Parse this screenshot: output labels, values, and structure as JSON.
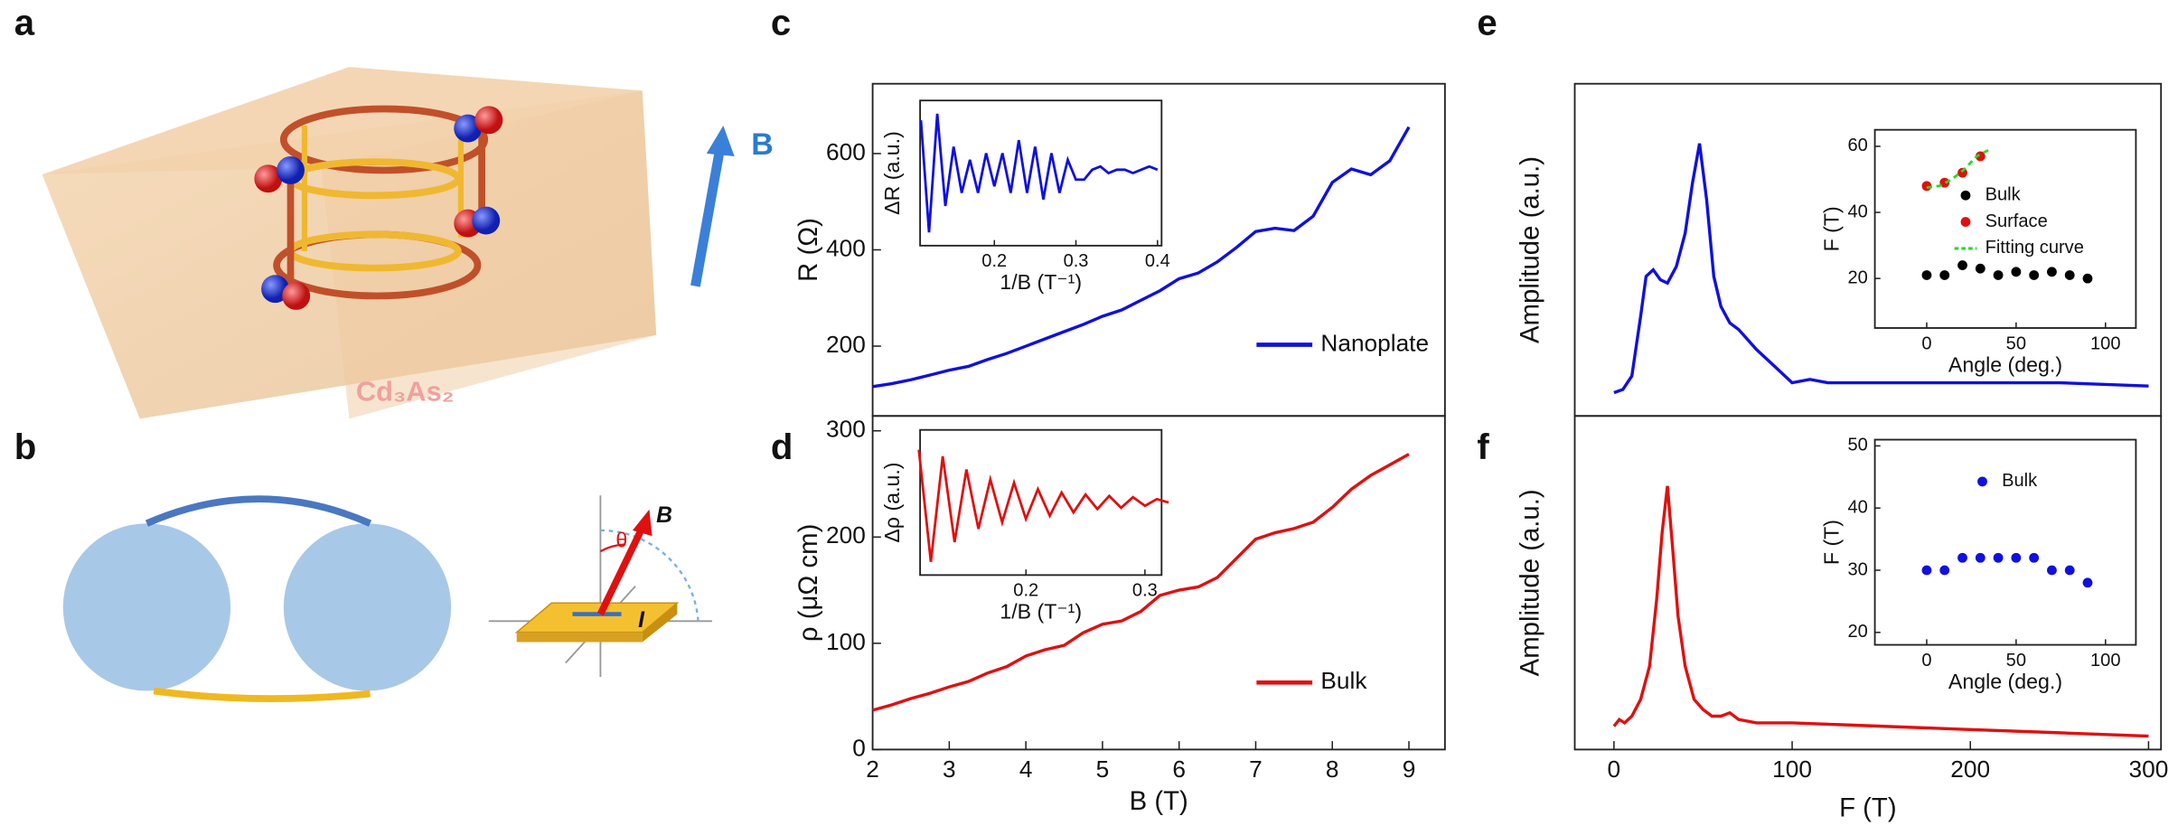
{
  "panel_labels": [
    "a",
    "b",
    "c",
    "d",
    "e",
    "f"
  ],
  "diagram_a": {
    "field": "B",
    "material": "Cd₃As₂"
  },
  "diagram_b": {
    "field": "B",
    "angle": "θ",
    "current": "I"
  },
  "chart_data": [
    {
      "type": "line",
      "ylabel": "R (Ω)",
      "xlim": [
        2,
        9.47
      ],
      "ylim": [
        55,
        745
      ],
      "yticks": [
        200,
        400,
        600
      ],
      "series": [
        {
          "name": "Nanoplate",
          "color": "#1010e0",
          "x": [
            2,
            2.25,
            2.5,
            2.75,
            3,
            3.25,
            3.5,
            3.75,
            4,
            4.25,
            4.5,
            4.75,
            5,
            5.25,
            5.5,
            5.75,
            6,
            6.25,
            6.5,
            6.75,
            7,
            7.25,
            7.5,
            7.75,
            8,
            8.25,
            8.5,
            8.75,
            9
          ],
          "values": [
            116,
            122,
            130,
            140,
            150,
            158,
            172,
            185,
            200,
            215,
            230,
            245,
            262,
            275,
            295,
            315,
            340,
            352,
            375,
            405,
            438,
            445,
            440,
            470,
            540,
            568,
            556,
            585,
            655
          ]
        }
      ]
    },
    {
      "type": "line",
      "xlabel": "1/B (T⁻¹)",
      "ylabel": "ΔR (a.u.)",
      "xlim": [
        0.109,
        0.405
      ],
      "ylim": [
        -1.1,
        1.1
      ],
      "xticks": [
        0.2,
        0.3,
        0.4
      ],
      "series": [
        {
          "color": "#1010e0",
          "x": [
            0.11,
            0.12,
            0.13,
            0.14,
            0.15,
            0.16,
            0.17,
            0.18,
            0.19,
            0.2,
            0.21,
            0.22,
            0.23,
            0.24,
            0.25,
            0.26,
            0.27,
            0.28,
            0.29,
            0.3,
            0.31,
            0.32,
            0.33,
            0.34,
            0.35,
            0.36,
            0.37,
            0.38,
            0.39,
            0.4
          ],
          "values": [
            0.8,
            -0.9,
            0.9,
            -0.5,
            0.4,
            -0.3,
            0.2,
            -0.3,
            0.3,
            -0.2,
            0.3,
            -0.3,
            0.5,
            -0.3,
            0.4,
            -0.4,
            0.3,
            -0.3,
            0.2,
            -0.1,
            -0.1,
            0.05,
            0.1,
            0,
            0.05,
            0.05,
            0,
            0.05,
            0.1,
            0.05
          ]
        }
      ]
    },
    {
      "type": "line",
      "xlabel": "B (T)",
      "ylabel": "ρ (μΩ cm)",
      "xlim": [
        2,
        9.47
      ],
      "ylim": [
        0,
        314
      ],
      "xticks": [
        2,
        3,
        4,
        5,
        6,
        7,
        8,
        9
      ],
      "yticks": [
        0,
        100,
        200,
        300
      ],
      "series": [
        {
          "name": "Bulk",
          "color": "#e01010",
          "x": [
            2,
            2.25,
            2.5,
            2.75,
            3,
            3.25,
            3.5,
            3.75,
            4,
            4.25,
            4.5,
            4.75,
            5,
            5.25,
            5.5,
            5.75,
            6,
            6.25,
            6.5,
            6.75,
            7,
            7.25,
            7.5,
            7.75,
            8,
            8.25,
            8.5,
            8.75,
            9
          ],
          "values": [
            37,
            42,
            48,
            53,
            59,
            64,
            72,
            78,
            88,
            94,
            98,
            110,
            118,
            121,
            130,
            145,
            150,
            153,
            162,
            180,
            198,
            204,
            208,
            214,
            228,
            245,
            258,
            268,
            278
          ]
        }
      ]
    },
    {
      "type": "line",
      "xlabel": "1/B (T⁻¹)",
      "ylabel": "Δρ (a.u.)",
      "xlim": [
        0.111,
        0.314
      ],
      "ylim": [
        -1.1,
        1.1
      ],
      "xticks": [
        0.2,
        0.3
      ],
      "series": [
        {
          "color": "#e01010",
          "x": [
            0.11,
            0.12,
            0.13,
            0.14,
            0.15,
            0.16,
            0.17,
            0.18,
            0.19,
            0.2,
            0.21,
            0.22,
            0.23,
            0.24,
            0.25,
            0.26,
            0.27,
            0.28,
            0.29,
            0.3,
            0.31,
            0.32
          ],
          "values": [
            0.8,
            -0.9,
            0.7,
            -0.6,
            0.5,
            -0.4,
            0.35,
            -0.3,
            0.3,
            -0.25,
            0.2,
            -0.2,
            0.15,
            -0.15,
            0.12,
            -0.1,
            0.1,
            -0.08,
            0.08,
            -0.05,
            0.05,
            0
          ]
        }
      ]
    },
    {
      "type": "line",
      "ylabel": "Amplitude (a.u.)",
      "xlim": [
        -22,
        307
      ],
      "ylim": [
        0,
        1
      ],
      "series": [
        {
          "color": "#1010e0",
          "x": [
            0,
            5,
            10,
            15,
            18,
            22,
            26,
            30,
            35,
            40,
            44,
            48,
            52,
            56,
            60,
            65,
            70,
            80,
            90,
            100,
            110,
            120,
            150,
            200,
            250,
            300
          ],
          "values": [
            0.07,
            0.08,
            0.12,
            0.3,
            0.42,
            0.44,
            0.41,
            0.4,
            0.45,
            0.55,
            0.7,
            0.82,
            0.65,
            0.42,
            0.33,
            0.28,
            0.26,
            0.2,
            0.15,
            0.1,
            0.11,
            0.1,
            0.1,
            0.1,
            0.1,
            0.09
          ]
        }
      ]
    },
    {
      "type": "scatter",
      "xlabel": "Angle (deg.)",
      "ylabel": "F (T)",
      "xlim": [
        -29,
        117
      ],
      "ylim": [
        5,
        65
      ],
      "xticks": [
        0,
        50,
        100
      ],
      "yticks": [
        20,
        40,
        60
      ],
      "series": [
        {
          "name": "Bulk",
          "color": "#000000",
          "x": [
            0,
            10,
            20,
            30,
            40,
            50,
            60,
            70,
            80,
            90
          ],
          "values": [
            21,
            21,
            24,
            23,
            21,
            22,
            21,
            22,
            21,
            20
          ]
        },
        {
          "name": "Surface",
          "color": "#e01010",
          "x": [
            0,
            10,
            20,
            30
          ],
          "values": [
            48,
            49,
            52,
            57
          ]
        },
        {
          "name": "Fitting curve",
          "color": "#22dd22",
          "mode": "dashed-line",
          "x": [
            0,
            7,
            14,
            21,
            28,
            35
          ],
          "values": [
            47.5,
            48,
            50,
            53,
            57,
            59
          ]
        }
      ]
    },
    {
      "type": "line",
      "xlabel": "F (T)",
      "ylabel": "Amplitude (a.u.)",
      "xlim": [
        -22,
        307
      ],
      "ylim": [
        0,
        1
      ],
      "xticks": [
        0,
        100,
        200,
        300
      ],
      "series": [
        {
          "color": "#e01010",
          "x": [
            0,
            3,
            6,
            10,
            15,
            20,
            24,
            27,
            30,
            33,
            36,
            40,
            45,
            50,
            55,
            60,
            65,
            70,
            80,
            100,
            150,
            200,
            250,
            300
          ],
          "values": [
            0.07,
            0.09,
            0.08,
            0.1,
            0.15,
            0.25,
            0.45,
            0.65,
            0.79,
            0.6,
            0.4,
            0.25,
            0.15,
            0.12,
            0.1,
            0.1,
            0.11,
            0.09,
            0.08,
            0.08,
            0.07,
            0.06,
            0.05,
            0.04
          ]
        }
      ]
    },
    {
      "type": "scatter",
      "xlabel": "Angle (deg.)",
      "ylabel": "F (T)",
      "xlim": [
        -29,
        117
      ],
      "ylim": [
        18,
        51
      ],
      "xticks": [
        0,
        50,
        100
      ],
      "yticks": [
        20,
        30,
        40,
        50
      ],
      "series": [
        {
          "name": "Bulk",
          "color": "#1010e0",
          "x": [
            0,
            10,
            20,
            30,
            40,
            50,
            60,
            70,
            80,
            90
          ],
          "values": [
            30,
            30,
            32,
            32,
            32,
            32,
            32,
            30,
            30,
            28
          ]
        }
      ]
    }
  ]
}
